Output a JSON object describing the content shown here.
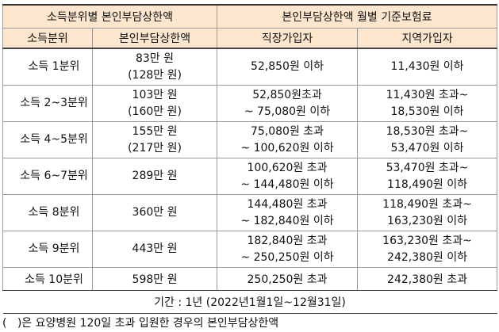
{
  "header": {
    "left_group": "소득분위별 본인부담상한액",
    "right_group": "본인부담상한액 월별 기준보험료",
    "col_income": "소득분위",
    "col_cap": "본인부담상한액",
    "col_employee": "직장가입자",
    "col_regional": "지역가입자"
  },
  "rows": [
    {
      "income": "소득 1분위",
      "cap1": "83만 원",
      "cap2": "(128만 원)",
      "emp1": "52,850원 이하",
      "emp2": "",
      "reg1": "11,430원 이하",
      "reg2": ""
    },
    {
      "income": "소득 2~3분위",
      "cap1": "103만 원",
      "cap2": "(160만 원)",
      "emp1": "52,850원초과",
      "emp2": "~ 75,080원 이하",
      "reg1": "11,430원 초과~",
      "reg2": "18,530원 이하"
    },
    {
      "income": "소득 4~5분위",
      "cap1": "155만 원",
      "cap2": "(217만 원)",
      "emp1": "75,080원 초과",
      "emp2": "~ 100,620원 이하",
      "reg1": "18,530원 초과~",
      "reg2": "53,470원 이하"
    },
    {
      "income": "소득 6~7분위",
      "cap1": "289만 원",
      "cap2": "",
      "emp1": "100,620원 초과",
      "emp2": "~ 144,480원 이하",
      "reg1": "53,470원 초과~",
      "reg2": "118,490원 이하"
    },
    {
      "income": "소득 8분위",
      "cap1": "360만 원",
      "cap2": "",
      "emp1": "144,480원 초과",
      "emp2": "~ 182,840원 이하",
      "reg1": "118,490원 초과~",
      "reg2": "163,230원 이하"
    },
    {
      "income": "소득 9분위",
      "cap1": "443만 원",
      "cap2": "",
      "emp1": "182,840원 초과",
      "emp2": "~ 250,250원 이하",
      "reg1": "163,230원 초과~",
      "reg2": "242,380원 이하"
    },
    {
      "income": "소득 10분위",
      "cap1": "598만 원",
      "cap2": "",
      "emp1": "250,250원 초과",
      "emp2": "",
      "reg1": "242,380원 초과",
      "reg2": ""
    }
  ],
  "period": "기간 : 1년 (2022년1월1일~12월31일)",
  "note": "(   )은 요양병원 120일 초과 입원한 경우의 본인부담상한액"
}
